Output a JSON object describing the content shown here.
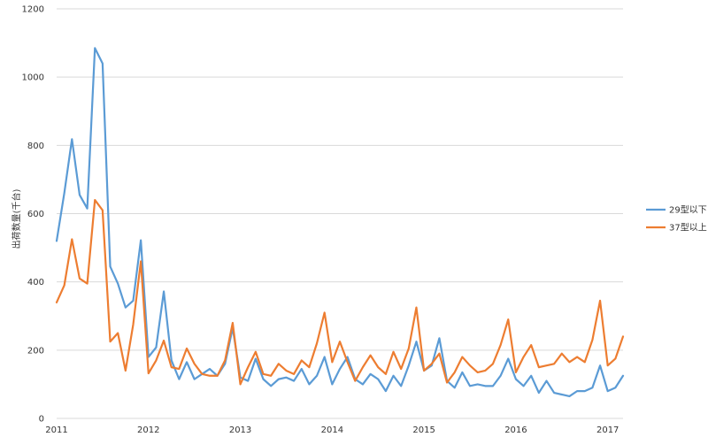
{
  "chart_data": {
    "type": "line",
    "title": "",
    "xlabel": "",
    "ylabel": "出荷数量(千台)",
    "ylim": [
      0,
      1200
    ],
    "yticks": [
      0,
      200,
      400,
      600,
      800,
      1000,
      1200
    ],
    "x_start": 2011.0,
    "x_step": 0.08333333,
    "xlim": [
      2011.0,
      2017.1667
    ],
    "xticks": [
      "2011",
      "2012",
      "2013",
      "2014",
      "2015",
      "2016",
      "2017"
    ],
    "grid": "horizontal",
    "legend": "right",
    "series": [
      {
        "name": "29型以下",
        "color": "#5b9bd5",
        "values": [
          520,
          660,
          818,
          655,
          615,
          1085,
          1040,
          445,
          395,
          325,
          345,
          522,
          180,
          208,
          372,
          170,
          115,
          165,
          115,
          130,
          145,
          125,
          160,
          265,
          120,
          110,
          175,
          115,
          95,
          115,
          120,
          110,
          145,
          100,
          125,
          180,
          100,
          145,
          180,
          115,
          100,
          130,
          115,
          80,
          125,
          95,
          155,
          225,
          140,
          155,
          235,
          110,
          90,
          135,
          95,
          100,
          95,
          95,
          125,
          175,
          115,
          95,
          125,
          75,
          110,
          75,
          70,
          65,
          80,
          80,
          90,
          155,
          80,
          90,
          125
        ]
      },
      {
        "name": "37型以上",
        "color": "#ed7d31",
        "values": [
          340,
          390,
          525,
          410,
          395,
          640,
          610,
          225,
          250,
          140,
          275,
          460,
          132,
          170,
          228,
          150,
          145,
          205,
          160,
          130,
          125,
          125,
          170,
          280,
          100,
          150,
          195,
          130,
          125,
          160,
          140,
          130,
          170,
          150,
          220,
          310,
          165,
          225,
          165,
          110,
          150,
          185,
          150,
          130,
          195,
          145,
          205,
          325,
          140,
          160,
          190,
          105,
          135,
          180,
          155,
          135,
          140,
          160,
          215,
          290,
          135,
          180,
          215,
          150,
          155,
          160,
          190,
          165,
          180,
          165,
          230,
          345,
          155,
          175,
          240
        ]
      }
    ]
  }
}
